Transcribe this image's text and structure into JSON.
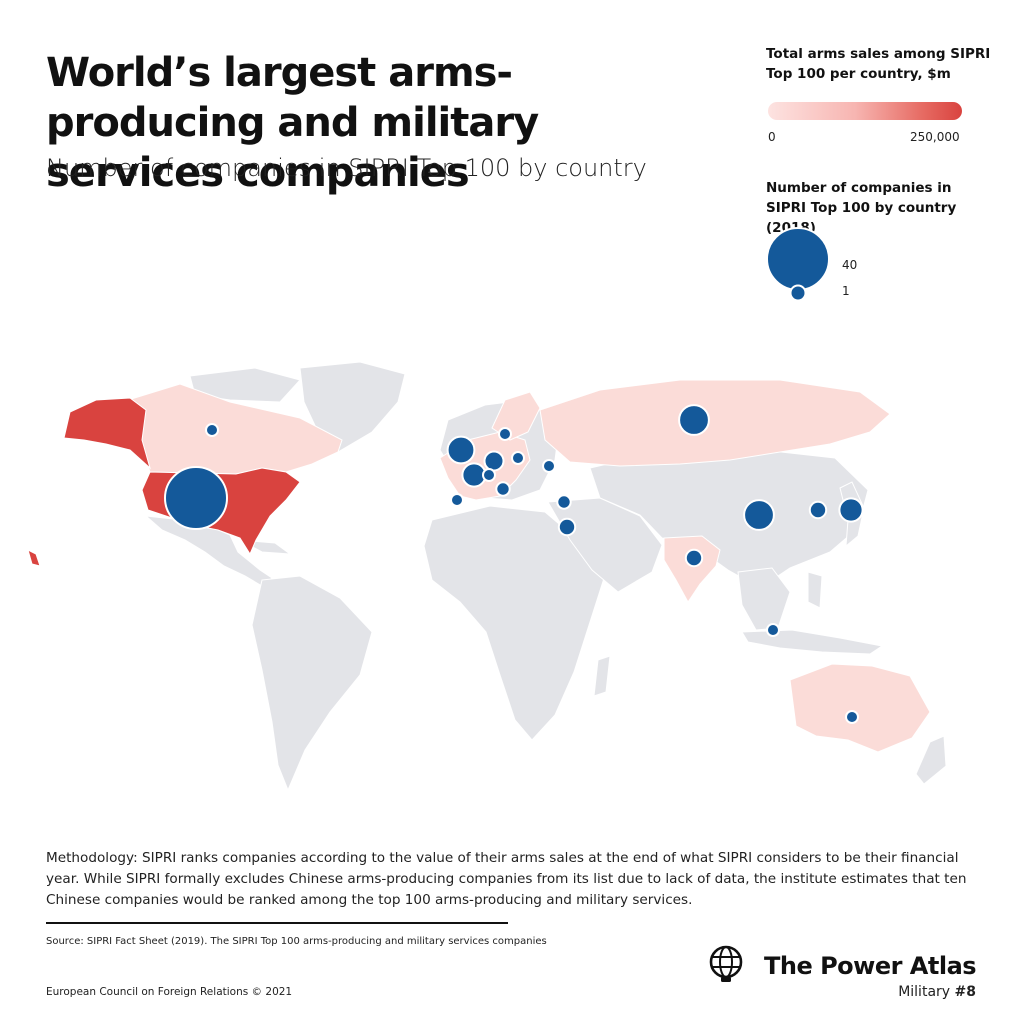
{
  "title": "World’s largest arms-producing and military services companies",
  "subtitle": "Number of companies in SIPRI Top 100 by country",
  "legend": {
    "sales_title": "Total arms sales among SIPRI Top 100 per country, $m",
    "sales_min": "0",
    "sales_max": "250,000",
    "count_title": "Number of companies in SIPRI Top 100 by country (2018)",
    "count_large": "40",
    "count_small": "1"
  },
  "colors": {
    "bubble": "#14599a",
    "land": "#e3e4e8",
    "sales_high": "#d9433f",
    "sales_low": "#fbdcd8"
  },
  "map_data": {
    "type": "bubble-choropleth",
    "shaded_countries": [
      {
        "name": "United States",
        "shade": "high"
      },
      {
        "name": "Canada",
        "shade": "low"
      },
      {
        "name": "Russia",
        "shade": "low"
      },
      {
        "name": "India",
        "shade": "low"
      },
      {
        "name": "Australia",
        "shade": "low"
      },
      {
        "name": "Western Europe",
        "shade": "low"
      }
    ],
    "bubbles": [
      {
        "name": "United States",
        "count": 43
      },
      {
        "name": "Canada",
        "count": 1
      },
      {
        "name": "Russia",
        "count": 10
      },
      {
        "name": "United Kingdom",
        "count": 8
      },
      {
        "name": "France",
        "count": 6
      },
      {
        "name": "Germany",
        "count": 4
      },
      {
        "name": "Italy",
        "count": 2
      },
      {
        "name": "Spain",
        "count": 1
      },
      {
        "name": "Sweden",
        "count": 1
      },
      {
        "name": "Poland",
        "count": 1
      },
      {
        "name": "Switzerland",
        "count": 1
      },
      {
        "name": "Ukraine",
        "count": 1
      },
      {
        "name": "Turkey",
        "count": 2
      },
      {
        "name": "Israel",
        "count": 3
      },
      {
        "name": "China",
        "count": 10
      },
      {
        "name": "South Korea",
        "count": 3
      },
      {
        "name": "Japan",
        "count": 6
      },
      {
        "name": "India",
        "count": 3
      },
      {
        "name": "Singapore",
        "count": 1
      },
      {
        "name": "Australia",
        "count": 1
      }
    ]
  },
  "methodology": "Methodology: SIPRI ranks companies according to the value of their arms sales at the end of what SIPRI considers to be their financial year. While SIPRI formally excludes Chinese arms-producing companies from its list due to lack of data, the institute estimates that ten Chinese companies would be ranked among the top 100 arms-producing and military services.",
  "source": "Source: SIPRI Fact Sheet (2019). The SIPRI Top 100 arms-producing and military services companies",
  "footer": {
    "org": "European Council on Foreign Relations © 2021",
    "brand": "The Power Atlas",
    "series": "Military",
    "series_num": "#8"
  },
  "icons": {
    "logo": "globe-logo-icon"
  }
}
